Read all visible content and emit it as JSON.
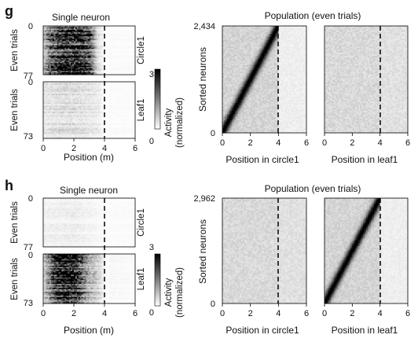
{
  "colors": {
    "ink": "#111111",
    "heat_low": "#ffffff",
    "heat_high": "#000000",
    "stop_line": "#000000"
  },
  "colorbar": {
    "label_line1": "Activity",
    "label_line2": "(normalized)",
    "max_label": "3",
    "min_label": "0",
    "min": 0,
    "max": 3
  },
  "chart_data": [
    {
      "panel": "g",
      "title_single": "Single neuron",
      "title_population": "Population (even trials)",
      "type": "heatmap",
      "single_neuron": {
        "x_label": "Position (m)",
        "x_ticks": [
          "0",
          "2",
          "4",
          "6"
        ],
        "xlim": [
          0,
          6
        ],
        "stop_position": 4,
        "circle1": {
          "env_label": "Circle1",
          "y_label": "Even trials",
          "ylim": [
            0,
            77
          ],
          "y_tick_top": "0",
          "y_tick_bottom": "77",
          "profile": [
            [
              0.0,
              0.6
            ],
            [
              0.5,
              1.8
            ],
            [
              1.0,
              2.4
            ],
            [
              1.5,
              2.6
            ],
            [
              2.0,
              2.6
            ],
            [
              2.5,
              2.5
            ],
            [
              3.0,
              2.2
            ],
            [
              3.5,
              0.4
            ],
            [
              4.0,
              0.05
            ],
            [
              5.0,
              0.05
            ],
            [
              6.0,
              0.05
            ]
          ]
        },
        "leaf1": {
          "env_label": "Leaf1",
          "y_label": "Even trials",
          "ylim": [
            0,
            73
          ],
          "y_tick_top": "0",
          "y_tick_bottom": "73",
          "profile": [
            [
              0.0,
              0.3
            ],
            [
              1.0,
              0.4
            ],
            [
              2.0,
              0.4
            ],
            [
              3.0,
              0.3
            ],
            [
              3.5,
              0.25
            ],
            [
              4.0,
              0.05
            ],
            [
              6.0,
              0.05
            ]
          ]
        }
      },
      "population": {
        "y_label": "Sorted neurons",
        "y_tick_top": "2,434",
        "y_tick_bottom": "0",
        "n_neurons": 2434,
        "x_ticks": [
          "0",
          "2",
          "4",
          "6"
        ],
        "xlim": [
          0,
          6
        ],
        "stop_position": 4,
        "circle1": {
          "x_label": "Position in circle1",
          "diagonal": true,
          "peak_range_m": [
            0,
            4
          ]
        },
        "leaf1": {
          "x_label": "Position in leaf1",
          "diagonal": false
        }
      }
    },
    {
      "panel": "h",
      "title_single": "Single neuron",
      "title_population": "Population (even trials)",
      "type": "heatmap",
      "single_neuron": {
        "x_label": "Position (m)",
        "x_ticks": [
          "0",
          "2",
          "4",
          "6"
        ],
        "xlim": [
          0,
          6
        ],
        "stop_position": 4,
        "circle1": {
          "env_label": "Circle1",
          "y_label": "Even trials",
          "ylim": [
            0,
            77
          ],
          "y_tick_top": "0",
          "y_tick_bottom": "77",
          "profile": [
            [
              0.0,
              0.15
            ],
            [
              2.0,
              0.2
            ],
            [
              4.0,
              0.05
            ],
            [
              6.0,
              0.05
            ]
          ]
        },
        "leaf1": {
          "env_label": "Leaf1",
          "y_label": "Even trials",
          "ylim": [
            0,
            73
          ],
          "y_tick_top": "0",
          "y_tick_bottom": "73",
          "profile": [
            [
              0.0,
              0.5
            ],
            [
              0.5,
              1.6
            ],
            [
              1.0,
              2.8
            ],
            [
              1.5,
              3.0
            ],
            [
              2.0,
              2.9
            ],
            [
              2.5,
              1.8
            ],
            [
              3.0,
              0.9
            ],
            [
              3.5,
              0.6
            ],
            [
              4.0,
              0.1
            ],
            [
              6.0,
              0.05
            ]
          ]
        }
      },
      "population": {
        "y_label": "Sorted neurons",
        "y_tick_top": "2,962",
        "y_tick_bottom": "0",
        "n_neurons": 2962,
        "x_ticks": [
          "0",
          "2",
          "4",
          "6"
        ],
        "xlim": [
          0,
          6
        ],
        "stop_position": 4,
        "circle1": {
          "x_label": "Position in circle1",
          "diagonal": false
        },
        "leaf1": {
          "x_label": "Position in leaf1",
          "diagonal": true,
          "peak_range_m": [
            0,
            4
          ]
        }
      }
    }
  ]
}
